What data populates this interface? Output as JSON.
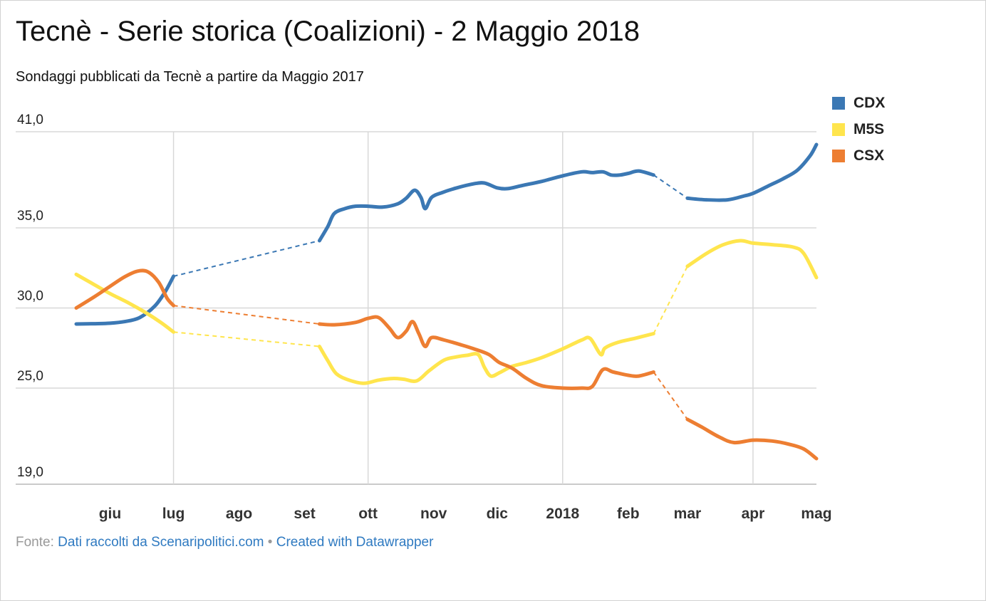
{
  "title": "Tecnè - Serie storica (Coalizioni) - 2 Maggio 2018",
  "subtitle": "Sondaggi pubblicati da Tecnè a partire da Maggio 2017",
  "footer": {
    "source_label": "Fonte: ",
    "source_link": "Dati raccolti da Scenaripolitici.com",
    "separator": " • ",
    "created_with": "Created with Datawrapper"
  },
  "chart_data": {
    "type": "line",
    "y_ticks": [
      "41,0",
      "35,0",
      "30,0",
      "25,0",
      "19,0"
    ],
    "y_tick_values": [
      41,
      35,
      30,
      25,
      19
    ],
    "ylim": [
      19,
      41
    ],
    "x_ticks": [
      "giu",
      "lug",
      "ago",
      "set",
      "ott",
      "nov",
      "dic",
      "2018",
      "feb",
      "mar",
      "apr",
      "mag"
    ],
    "x_tick_dates": [
      "2017-06-01",
      "2017-07-01",
      "2017-08-01",
      "2017-09-01",
      "2017-10-01",
      "2017-11-01",
      "2017-12-01",
      "2018-01-01",
      "2018-02-01",
      "2018-03-01",
      "2018-04-01",
      "2018-05-01"
    ],
    "xlim": [
      "2017-05-16",
      "2018-05-01"
    ],
    "grid": true,
    "legend_position": "top-right",
    "series": [
      {
        "name": "CDX",
        "color": "#3b78b4",
        "points": [
          [
            "2017-05-16",
            29.0
          ],
          [
            "2017-05-24",
            29.02
          ],
          [
            "2017-06-01",
            29.05
          ],
          [
            "2017-06-08",
            29.15
          ],
          [
            "2017-06-15",
            29.4
          ],
          [
            "2017-06-22",
            30.1
          ],
          [
            "2017-06-27",
            31.0
          ],
          [
            "2017-07-01",
            31.98
          ],
          [
            "2017-09-08",
            34.2
          ],
          [
            "2017-09-12",
            35.1
          ],
          [
            "2017-09-15",
            35.9
          ],
          [
            "2017-09-20",
            36.2
          ],
          [
            "2017-09-25",
            36.35
          ],
          [
            "2017-10-01",
            36.35
          ],
          [
            "2017-10-08",
            36.3
          ],
          [
            "2017-10-15",
            36.5
          ],
          [
            "2017-10-19",
            36.85
          ],
          [
            "2017-10-23",
            37.35
          ],
          [
            "2017-10-26",
            36.9
          ],
          [
            "2017-10-28",
            36.2
          ],
          [
            "2017-10-31",
            36.9
          ],
          [
            "2017-11-05",
            37.2
          ],
          [
            "2017-11-12",
            37.5
          ],
          [
            "2017-11-20",
            37.75
          ],
          [
            "2017-11-25",
            37.8
          ],
          [
            "2017-12-01",
            37.5
          ],
          [
            "2017-12-06",
            37.45
          ],
          [
            "2017-12-13",
            37.65
          ],
          [
            "2017-12-22",
            37.9
          ],
          [
            "2018-01-01",
            38.25
          ],
          [
            "2018-01-10",
            38.5
          ],
          [
            "2018-01-15",
            38.45
          ],
          [
            "2018-01-20",
            38.5
          ],
          [
            "2018-01-24",
            38.3
          ],
          [
            "2018-01-28",
            38.3
          ],
          [
            "2018-02-01",
            38.4
          ],
          [
            "2018-02-06",
            38.55
          ],
          [
            "2018-02-13",
            38.3
          ],
          [
            "2018-03-01",
            36.85
          ],
          [
            "2018-03-10",
            36.75
          ],
          [
            "2018-03-20",
            36.75
          ],
          [
            "2018-03-28",
            37.0
          ],
          [
            "2018-04-01",
            37.15
          ],
          [
            "2018-04-08",
            37.6
          ],
          [
            "2018-04-15",
            38.05
          ],
          [
            "2018-04-22",
            38.6
          ],
          [
            "2018-04-28",
            39.5
          ],
          [
            "2018-05-01",
            40.2
          ]
        ],
        "dashed_gaps": [
          [
            "2017-07-01",
            "2017-09-08"
          ],
          [
            "2018-02-13",
            "2018-03-01"
          ]
        ]
      },
      {
        "name": "M5S",
        "color": "#ffe54d",
        "points": [
          [
            "2017-05-16",
            32.1
          ],
          [
            "2017-05-24",
            31.5
          ],
          [
            "2017-06-01",
            30.9
          ],
          [
            "2017-06-10",
            30.3
          ],
          [
            "2017-06-18",
            29.7
          ],
          [
            "2017-06-25",
            29.1
          ],
          [
            "2017-07-01",
            28.5
          ],
          [
            "2017-09-08",
            27.6
          ],
          [
            "2017-09-12",
            26.7
          ],
          [
            "2017-09-16",
            25.9
          ],
          [
            "2017-09-22",
            25.5
          ],
          [
            "2017-09-29",
            25.3
          ],
          [
            "2017-10-06",
            25.5
          ],
          [
            "2017-10-13",
            25.6
          ],
          [
            "2017-10-18",
            25.55
          ],
          [
            "2017-10-24",
            25.45
          ],
          [
            "2017-10-30",
            26.1
          ],
          [
            "2017-11-06",
            26.75
          ],
          [
            "2017-11-12",
            26.95
          ],
          [
            "2017-11-17",
            27.05
          ],
          [
            "2017-11-22",
            27.1
          ],
          [
            "2017-11-25",
            26.3
          ],
          [
            "2017-11-28",
            25.75
          ],
          [
            "2017-12-02",
            25.95
          ],
          [
            "2017-12-08",
            26.35
          ],
          [
            "2017-12-15",
            26.6
          ],
          [
            "2017-12-22",
            26.9
          ],
          [
            "2018-01-01",
            27.45
          ],
          [
            "2018-01-10",
            28.0
          ],
          [
            "2018-01-14",
            28.1
          ],
          [
            "2018-01-19",
            27.1
          ],
          [
            "2018-01-21",
            27.5
          ],
          [
            "2018-01-27",
            27.85
          ],
          [
            "2018-02-04",
            28.1
          ],
          [
            "2018-02-13",
            28.4
          ],
          [
            "2018-03-01",
            32.6
          ],
          [
            "2018-03-10",
            33.4
          ],
          [
            "2018-03-18",
            33.95
          ],
          [
            "2018-03-26",
            34.2
          ],
          [
            "2018-04-01",
            34.05
          ],
          [
            "2018-04-10",
            33.95
          ],
          [
            "2018-04-20",
            33.8
          ],
          [
            "2018-04-25",
            33.4
          ],
          [
            "2018-05-01",
            31.9
          ]
        ],
        "dashed_gaps": [
          [
            "2017-07-01",
            "2017-09-08"
          ],
          [
            "2018-02-13",
            "2018-03-01"
          ]
        ]
      },
      {
        "name": "CSX",
        "color": "#ed7e32",
        "points": [
          [
            "2017-05-16",
            30.0
          ],
          [
            "2017-05-24",
            30.65
          ],
          [
            "2017-06-01",
            31.35
          ],
          [
            "2017-06-08",
            31.95
          ],
          [
            "2017-06-14",
            32.3
          ],
          [
            "2017-06-19",
            32.25
          ],
          [
            "2017-06-24",
            31.6
          ],
          [
            "2017-06-28",
            30.6
          ],
          [
            "2017-07-01",
            30.15
          ],
          [
            "2017-09-08",
            29.0
          ],
          [
            "2017-09-15",
            28.95
          ],
          [
            "2017-09-25",
            29.1
          ],
          [
            "2017-10-01",
            29.35
          ],
          [
            "2017-10-06",
            29.4
          ],
          [
            "2017-10-11",
            28.75
          ],
          [
            "2017-10-15",
            28.15
          ],
          [
            "2017-10-19",
            28.55
          ],
          [
            "2017-10-22",
            29.15
          ],
          [
            "2017-10-25",
            28.4
          ],
          [
            "2017-10-28",
            27.6
          ],
          [
            "2017-10-31",
            28.15
          ],
          [
            "2017-11-06",
            28.0
          ],
          [
            "2017-11-14",
            27.7
          ],
          [
            "2017-11-20",
            27.45
          ],
          [
            "2017-11-27",
            27.1
          ],
          [
            "2017-12-02",
            26.6
          ],
          [
            "2017-12-08",
            26.25
          ],
          [
            "2017-12-15",
            25.6
          ],
          [
            "2017-12-22",
            25.15
          ],
          [
            "2018-01-01",
            25.0
          ],
          [
            "2018-01-10",
            25.0
          ],
          [
            "2018-01-15",
            25.1
          ],
          [
            "2018-01-20",
            26.15
          ],
          [
            "2018-01-25",
            26.0
          ],
          [
            "2018-02-01",
            25.8
          ],
          [
            "2018-02-06",
            25.75
          ],
          [
            "2018-02-13",
            26.0
          ],
          [
            "2018-03-01",
            23.05
          ],
          [
            "2018-03-08",
            22.55
          ],
          [
            "2018-03-16",
            21.95
          ],
          [
            "2018-03-23",
            21.6
          ],
          [
            "2018-04-01",
            21.75
          ],
          [
            "2018-04-10",
            21.7
          ],
          [
            "2018-04-18",
            21.5
          ],
          [
            "2018-04-25",
            21.2
          ],
          [
            "2018-05-01",
            20.6
          ]
        ],
        "dashed_gaps": [
          [
            "2017-07-01",
            "2017-09-08"
          ],
          [
            "2018-02-13",
            "2018-03-01"
          ]
        ]
      }
    ]
  }
}
